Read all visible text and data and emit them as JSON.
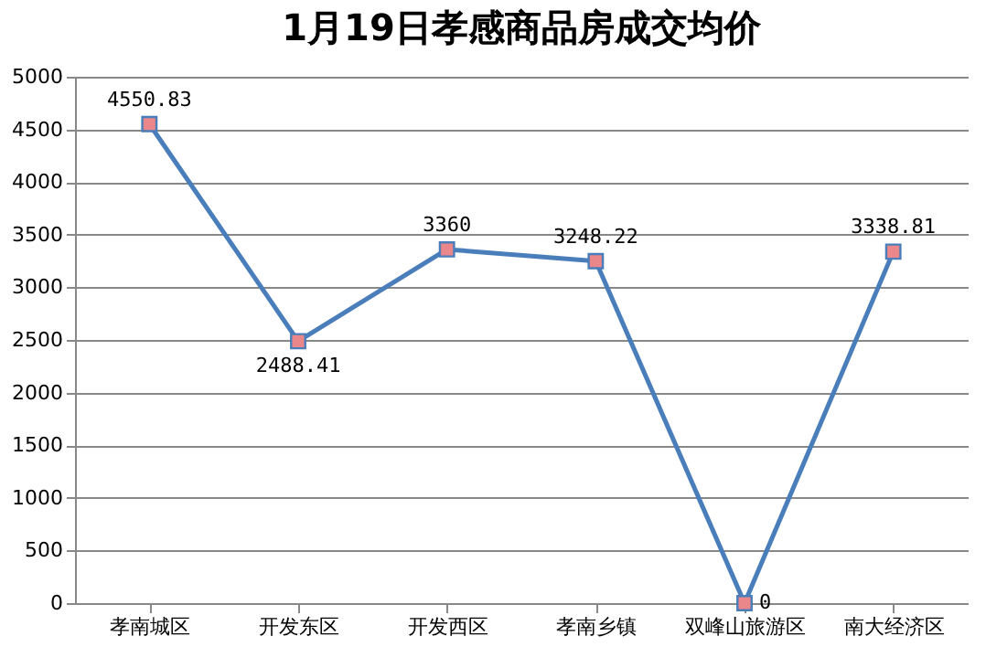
{
  "chart_data": {
    "type": "line",
    "title": "1月19日孝感商品房成交均价",
    "categories": [
      "孝南城区",
      "开发东区",
      "开发西区",
      "孝南乡镇",
      "双峰山旅游区",
      "南大经济区"
    ],
    "series": [
      {
        "color": "#4a7ebb",
        "values": [
          4550.83,
          2488.41,
          3360,
          3248.22,
          0,
          3338.81
        ]
      }
    ],
    "ylim": [
      0,
      5000
    ],
    "yticks": [
      0,
      500,
      1000,
      1500,
      2000,
      2500,
      3000,
      3500,
      4000,
      4500,
      5000
    ],
    "grid": "y",
    "marker": "square",
    "line_style": "solid",
    "data_labels": true
  }
}
